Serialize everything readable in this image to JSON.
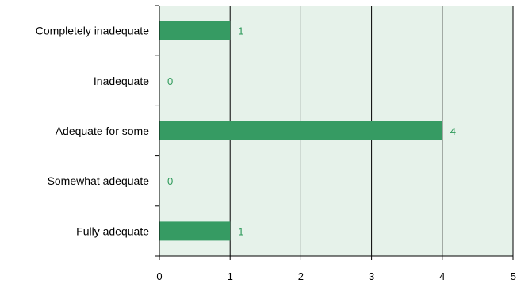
{
  "chart_data": {
    "type": "bar",
    "orientation": "horizontal",
    "categories": [
      "Completely inadequate",
      "Inadequate",
      "Adequate for some",
      "Somewhat adequate",
      "Fully adequate"
    ],
    "values": [
      1,
      0,
      4,
      0,
      1
    ],
    "data_labels": [
      "1",
      "0",
      "4",
      "0",
      "1"
    ],
    "xlim": [
      0,
      5
    ],
    "x_ticks": [
      "0",
      "1",
      "2",
      "3",
      "4",
      "5"
    ],
    "grid": true,
    "title": "",
    "xlabel": "",
    "ylabel": "",
    "colors": {
      "bar": "#369b63",
      "plot_background": "#e6f2ea",
      "data_label": "#2e9a5a",
      "grid": "#000000"
    }
  }
}
